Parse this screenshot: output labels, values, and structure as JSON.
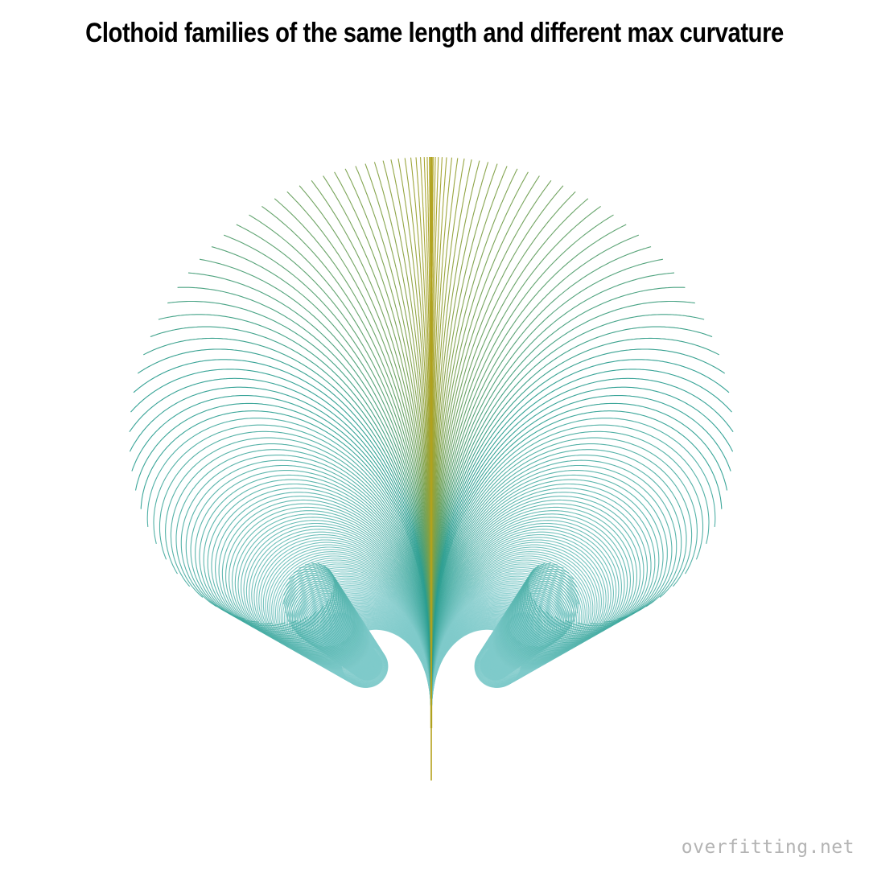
{
  "title": "Clothoid families of the same length and different max curvature",
  "watermark": "overfitting.net",
  "colors": {
    "background": "#ffffff",
    "title": "#000000",
    "low_curvature": "#b5a21a",
    "mid_curvature": "#2a9d8f",
    "high_curvature": "#7fcaca",
    "watermark": "#b4b4b4"
  },
  "families": [
    {
      "side": "left"
    },
    {
      "side": "right"
    }
  ]
}
